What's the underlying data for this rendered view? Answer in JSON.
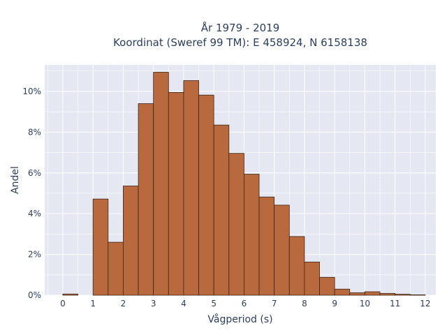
{
  "chart_data": {
    "type": "bar",
    "title_line1": "År 1979 - 2019",
    "title_line2": "Koordinat (Sweref 99 TM): E 458924, N 6158138",
    "xlabel": "Vågperiod (s)",
    "ylabel": "Andel",
    "x_ticks": [
      0,
      1,
      2,
      3,
      4,
      5,
      6,
      7,
      8,
      9,
      10,
      11,
      12
    ],
    "y_ticks": [
      0,
      2,
      4,
      6,
      8,
      10
    ],
    "y_tick_suffix": "%",
    "xlim": [
      -0.6,
      12.35
    ],
    "ylim": [
      0,
      11.3
    ],
    "bin_width": 0.5,
    "bins": [
      {
        "x0": 0.0,
        "value": 0.06
      },
      {
        "x0": 1.0,
        "value": 4.72
      },
      {
        "x0": 1.5,
        "value": 2.6
      },
      {
        "x0": 2.0,
        "value": 5.36
      },
      {
        "x0": 2.5,
        "value": 9.4
      },
      {
        "x0": 3.0,
        "value": 10.94
      },
      {
        "x0": 3.5,
        "value": 9.95
      },
      {
        "x0": 4.0,
        "value": 10.53
      },
      {
        "x0": 4.5,
        "value": 9.82
      },
      {
        "x0": 5.0,
        "value": 8.35
      },
      {
        "x0": 5.5,
        "value": 6.96
      },
      {
        "x0": 6.0,
        "value": 5.94
      },
      {
        "x0": 6.5,
        "value": 4.82
      },
      {
        "x0": 7.0,
        "value": 4.42
      },
      {
        "x0": 7.5,
        "value": 2.88
      },
      {
        "x0": 8.0,
        "value": 1.63
      },
      {
        "x0": 8.5,
        "value": 0.88
      },
      {
        "x0": 9.0,
        "value": 0.3
      },
      {
        "x0": 9.5,
        "value": 0.12
      },
      {
        "x0": 10.0,
        "value": 0.17
      },
      {
        "x0": 10.5,
        "value": 0.09
      },
      {
        "x0": 11.0,
        "value": 0.05
      },
      {
        "x0": 11.5,
        "value": 0.02
      }
    ],
    "grid": true,
    "colors": {
      "bar_fill": "#b86a3e",
      "bar_stroke": "#3d2516",
      "plot_bg": "#e5e8f2",
      "grid": "#ffffff",
      "text": "#2a3f5f"
    }
  }
}
